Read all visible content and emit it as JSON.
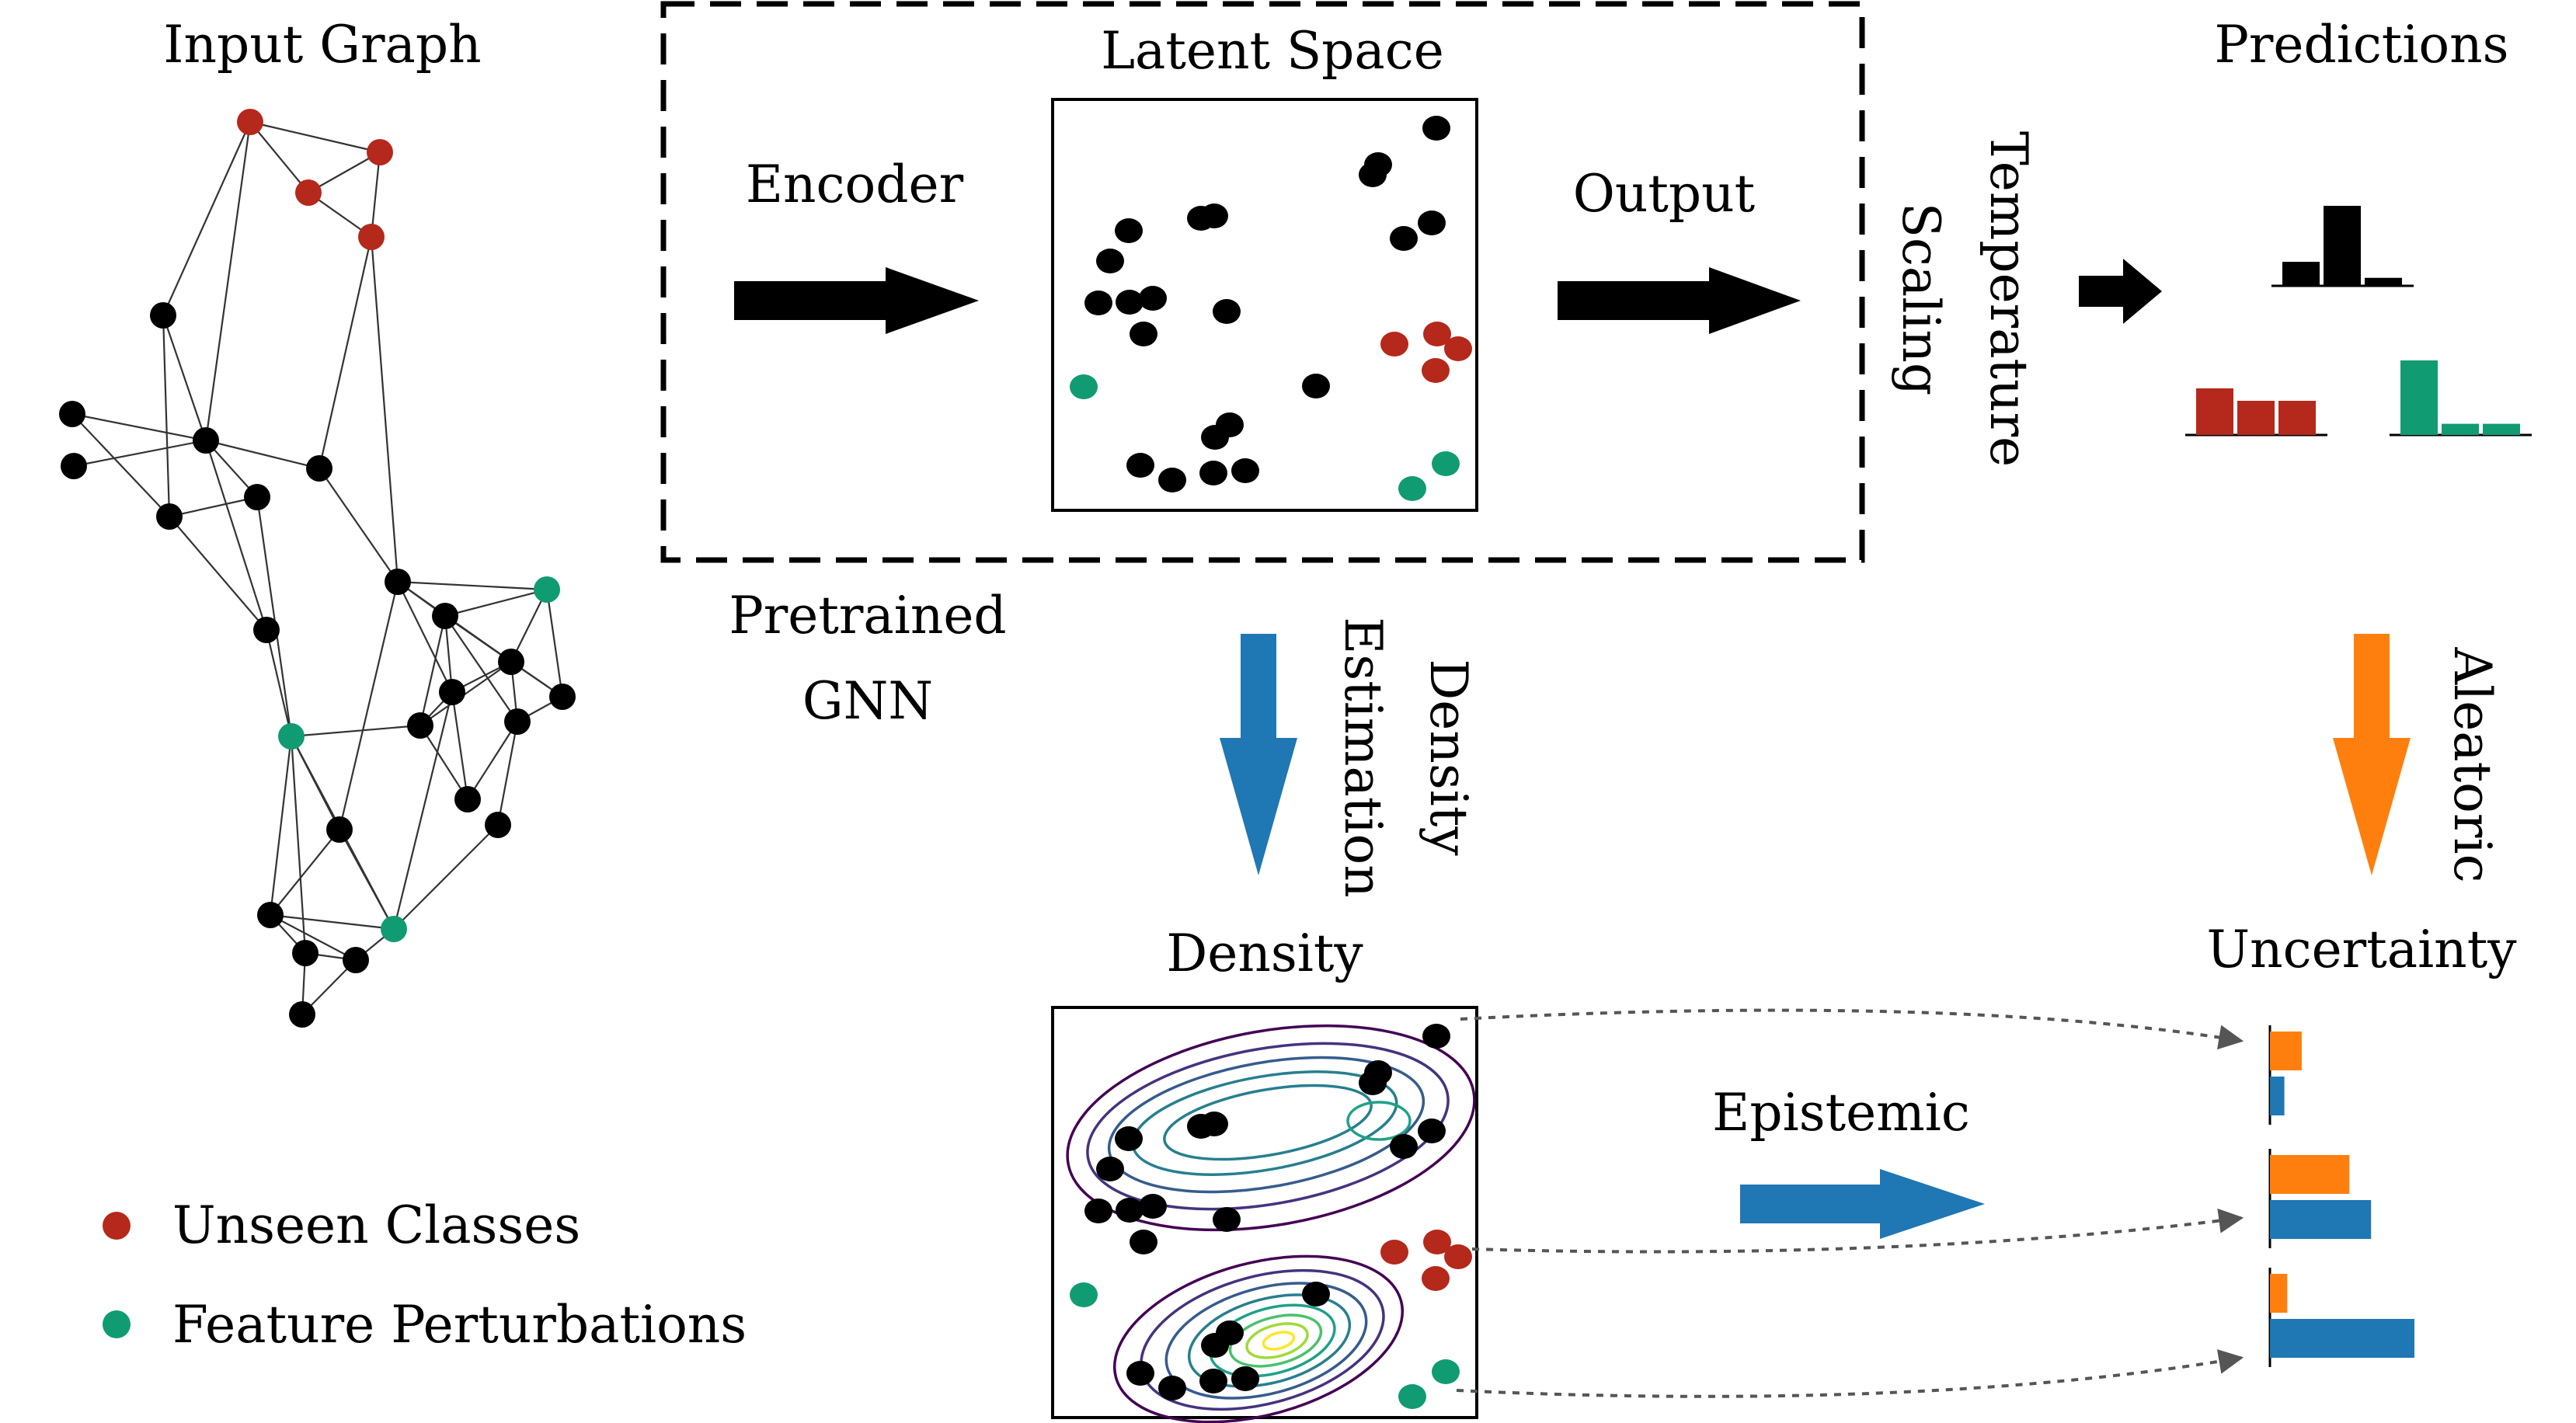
{
  "labels": {
    "input_graph": "Input Graph",
    "latent_space": "Latent Space",
    "predictions": "Predictions",
    "encoder": "Encoder",
    "output": "Output",
    "temperature": "Temperature",
    "scaling": "Scaling",
    "pretrained": "Pretrained",
    "gnn": "GNN",
    "density_title": "Density",
    "density_est_1": "Density",
    "density_est_2": "Estimation",
    "aleatoric": "Aleatoric",
    "uncertainty": "Uncertainty",
    "epistemic": "Epistemic"
  },
  "legend": [
    {
      "label": "Unseen Classes",
      "color": "#b5281c"
    },
    {
      "label": "Feature Perturbations",
      "color": "#119b72"
    }
  ],
  "colors": {
    "normal": "#000000",
    "unseen": "#b5281c",
    "perturbed": "#119b72",
    "epistemic": "#1f77b4",
    "aleatoric": "#ff7f0e"
  },
  "prediction_bars": [
    {
      "class": "normal",
      "values": [
        0.3,
        1.0,
        0.1
      ]
    },
    {
      "class": "unseen",
      "values": [
        0.75,
        0.55,
        0.55
      ]
    },
    {
      "class": "perturbed",
      "values": [
        1.0,
        0.15,
        0.15
      ]
    }
  ],
  "uncertainty_bars": [
    {
      "class": "normal",
      "aleatoric": 0.22,
      "epistemic": 0.1
    },
    {
      "class": "unseen",
      "aleatoric": 0.55,
      "epistemic": 0.7
    },
    {
      "class": "perturbed",
      "aleatoric": 0.12,
      "epistemic": 1.0
    }
  ]
}
